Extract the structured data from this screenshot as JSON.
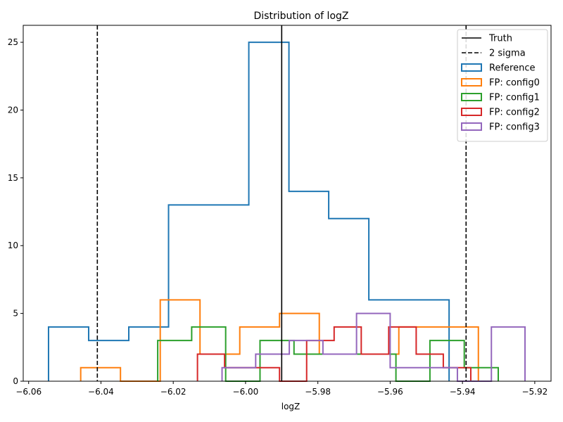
{
  "chart_data": {
    "type": "histogram-step",
    "title": "Distribution of logZ",
    "xlabel": "logZ",
    "ylabel": "",
    "xlim": [
      -6.0615,
      -5.9155
    ],
    "ylim": [
      0,
      26.25
    ],
    "x_ticks": [
      -6.06,
      -6.04,
      -6.02,
      -6.0,
      -5.98,
      -5.96,
      -5.94,
      -5.92
    ],
    "x_tick_labels": [
      "−6.06",
      "−6.04",
      "−6.02",
      "−6.00",
      "−5.98",
      "−5.96",
      "−5.94",
      "−5.92"
    ],
    "y_ticks": [
      0,
      5,
      10,
      15,
      20,
      25
    ],
    "y_tick_labels": [
      "0",
      "5",
      "10",
      "15",
      "20",
      "25"
    ],
    "grid": false,
    "legend_position": "top-right",
    "reference_lines": [
      {
        "name": "Truth",
        "x": -5.99,
        "color": "#000000",
        "style": "solid"
      },
      {
        "name": "2 sigma",
        "x": -6.041,
        "color": "#000000",
        "style": "dashed"
      },
      {
        "name": "2 sigma",
        "x": -5.939,
        "color": "#000000",
        "style": "dashed"
      }
    ],
    "series": [
      {
        "name": "Reference",
        "color": "#1f77b4",
        "edges": [
          -6.0545,
          -6.0434,
          -6.0323,
          -6.0213,
          -6.0102,
          -5.9991,
          -5.988,
          -5.977,
          -5.9659,
          -5.9548,
          -5.9437
        ],
        "counts": [
          4,
          3,
          4,
          13,
          13,
          25,
          14,
          12,
          6,
          6
        ]
      },
      {
        "name": "FP: config0",
        "color": "#ff7f0e",
        "edges": [
          -6.0456,
          -6.0346,
          -6.0236,
          -6.0126,
          -6.0016,
          -5.9906,
          -5.9796,
          -5.9686,
          -5.9576,
          -5.9466,
          -5.9356
        ],
        "counts": [
          1,
          0,
          6,
          2,
          4,
          5,
          2,
          2,
          4,
          4
        ]
      },
      {
        "name": "FP: config1",
        "color": "#2ca02c",
        "edges": [
          -6.0243,
          -6.0149,
          -6.0055,
          -5.996,
          -5.9866,
          -5.9772,
          -5.9678,
          -5.9584,
          -5.949,
          -5.9395,
          -5.9301
        ],
        "counts": [
          3,
          4,
          0,
          3,
          2,
          2,
          2,
          0,
          3,
          1
        ]
      },
      {
        "name": "FP: config2",
        "color": "#d62728",
        "edges": [
          -6.0133,
          -6.0058,
          -5.9982,
          -5.9906,
          -5.9831,
          -5.9755,
          -5.968,
          -5.9604,
          -5.9528,
          -5.9453,
          -5.9377
        ],
        "counts": [
          2,
          1,
          1,
          0,
          3,
          4,
          2,
          4,
          2,
          1
        ]
      },
      {
        "name": "FP: config3",
        "color": "#9467bd",
        "edges": [
          -6.0065,
          -5.9972,
          -5.9879,
          -5.9786,
          -5.9693,
          -5.96,
          -5.9507,
          -5.9414,
          -5.932,
          -5.9227
        ],
        "counts": [
          1,
          2,
          3,
          2,
          5,
          1,
          1,
          0,
          4
        ]
      }
    ],
    "legend": [
      {
        "label": "Truth",
        "kind": "line",
        "color": "#000000",
        "style": "solid"
      },
      {
        "label": "2 sigma",
        "kind": "line",
        "color": "#000000",
        "style": "dashed"
      },
      {
        "label": "Reference",
        "kind": "box",
        "color": "#1f77b4"
      },
      {
        "label": "FP: config0",
        "kind": "box",
        "color": "#ff7f0e"
      },
      {
        "label": "FP: config1",
        "kind": "box",
        "color": "#2ca02c"
      },
      {
        "label": "FP: config2",
        "kind": "box",
        "color": "#d62728"
      },
      {
        "label": "FP: config3",
        "kind": "box",
        "color": "#9467bd"
      }
    ]
  }
}
